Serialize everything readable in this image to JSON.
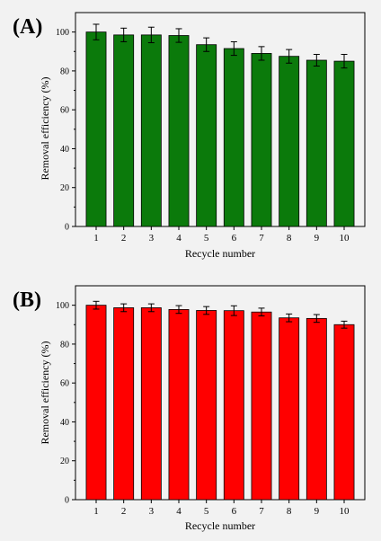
{
  "background": "#f2f2f2",
  "chart_data": [
    {
      "type": "bar",
      "panel_label": "(A)",
      "bar_color": "#0b7a0b",
      "categories": [
        "1",
        "2",
        "3",
        "4",
        "5",
        "6",
        "7",
        "8",
        "9",
        "10"
      ],
      "values": [
        100,
        98.5,
        98.5,
        98.2,
        93.5,
        91.5,
        89,
        87.5,
        85.5,
        85
      ],
      "errors": [
        4,
        3.5,
        4,
        3.5,
        3.5,
        3.5,
        3.5,
        3.5,
        3,
        3.5
      ],
      "xlabel": "Recycle number",
      "ylabel": "Removal efficiency (%)",
      "ylim": [
        0,
        110
      ],
      "yticks": [
        0,
        20,
        40,
        60,
        80,
        100
      ],
      "grid": false
    },
    {
      "type": "bar",
      "panel_label": "(B)",
      "bar_color": "#ff0000",
      "categories": [
        "1",
        "2",
        "3",
        "4",
        "5",
        "6",
        "7",
        "8",
        "9",
        "10"
      ],
      "values": [
        100,
        98.7,
        98.7,
        97.8,
        97.3,
        97.2,
        96.5,
        93.5,
        93.2,
        90
      ],
      "errors": [
        2,
        2,
        2,
        2,
        2,
        2.5,
        2,
        2,
        2,
        1.8
      ],
      "xlabel": "Recycle number",
      "ylabel": "Removal efficiency (%)",
      "ylim": [
        0,
        110
      ],
      "yticks": [
        0,
        20,
        40,
        60,
        80,
        100
      ],
      "grid": false
    }
  ]
}
